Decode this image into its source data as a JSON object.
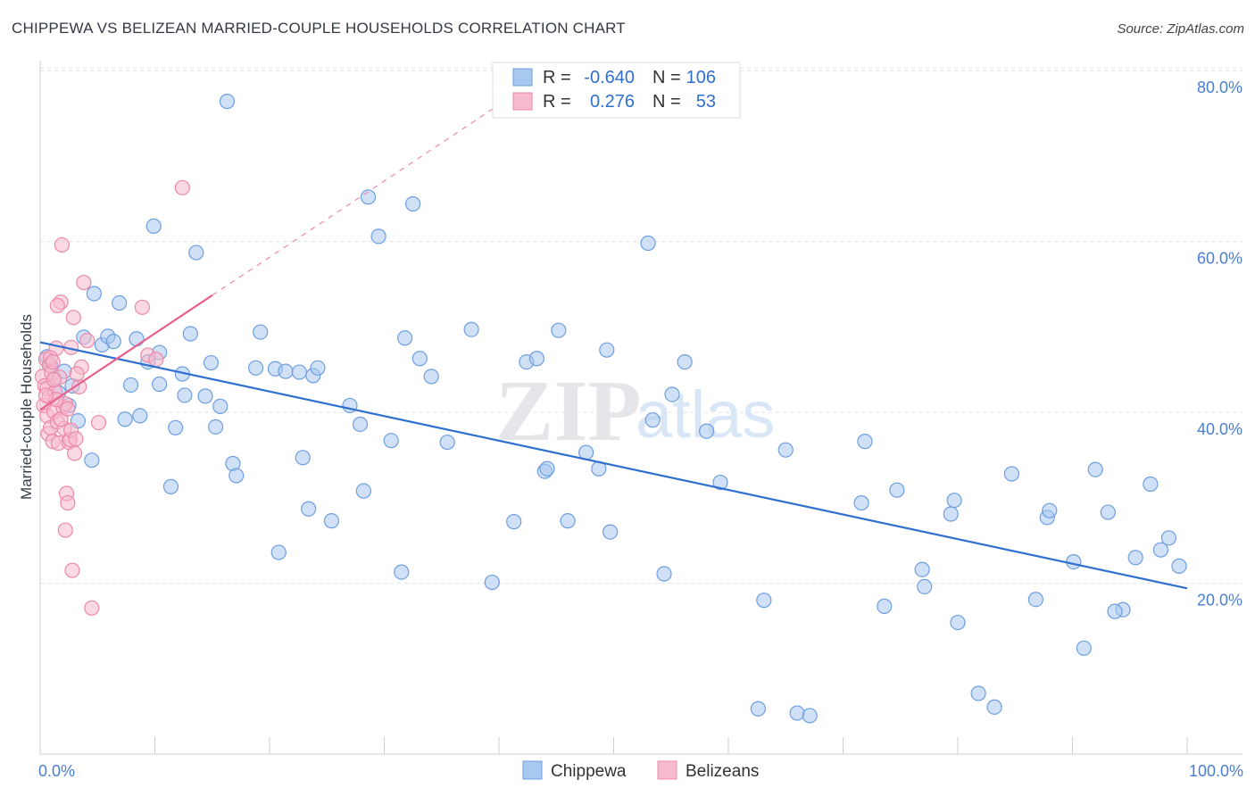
{
  "title": "CHIPPEWA VS BELIZEAN MARRIED-COUPLE HOUSEHOLDS CORRELATION CHART",
  "source": "Source: ZipAtlas.com",
  "watermark": {
    "zip": "ZIP",
    "atlas": "atlas"
  },
  "colors": {
    "blue_fill": "#a9c8f0",
    "blue_stroke": "#6d9fe0",
    "blue_line": "#2f6fd0",
    "pink_fill": "#f7b9cc",
    "pink_stroke": "#ec89a8",
    "pink_line": "#e8618e",
    "tick_text": "#4a7fd0",
    "grid": "#dde3ea",
    "axis": "#c9ced6"
  },
  "legend": {
    "rows": [
      {
        "r_label": "R =",
        "r_value": "-0.640",
        "n_label": "N =",
        "n_value": "106"
      },
      {
        "r_label": "R =",
        "r_value": "0.276",
        "n_label": "N =",
        "n_value": "53"
      }
    ]
  },
  "bottom_legend": [
    "Chippewa",
    "Belizeans"
  ],
  "chart_data": {
    "type": "scatter",
    "title": "CHIPPEWA VS BELIZEAN MARRIED-COUPLE HOUSEHOLDS CORRELATION CHART",
    "xlabel": "",
    "ylabel": "Married-couple Households",
    "xlim": [
      0,
      100
    ],
    "ylim": [
      0,
      82
    ],
    "x_tick_labels": [
      "0.0%",
      "100.0%"
    ],
    "y_ticks": [
      20,
      40,
      60,
      80
    ],
    "y_tick_labels": [
      "20.0%",
      "40.0%",
      "60.0%",
      "80.0%"
    ],
    "grid": true,
    "series": [
      {
        "name": "Chippewa",
        "r": -0.64,
        "n": 106,
        "trend": {
          "x0": 0,
          "y0": 48.2,
          "x1": 100,
          "y1": 19.4
        },
        "points": [
          [
            0.6,
            46.5
          ],
          [
            0.9,
            45.5
          ],
          [
            1.2,
            43.9
          ],
          [
            1.6,
            42.3
          ],
          [
            2.1,
            44.8
          ],
          [
            2.5,
            40.8
          ],
          [
            2.8,
            43.1
          ],
          [
            3.3,
            39
          ],
          [
            3.8,
            48.8
          ],
          [
            4.5,
            34.4
          ],
          [
            4.7,
            53.9
          ],
          [
            5.4,
            47.9
          ],
          [
            5.9,
            48.9
          ],
          [
            6.4,
            48.3
          ],
          [
            6.9,
            52.8
          ],
          [
            7.4,
            39.2
          ],
          [
            7.9,
            43.2
          ],
          [
            8.4,
            48.6
          ],
          [
            8.7,
            39.6
          ],
          [
            9.4,
            45.9
          ],
          [
            9.9,
            61.8
          ],
          [
            10.4,
            43.3
          ],
          [
            10.4,
            47
          ],
          [
            11.4,
            31.3
          ],
          [
            11.8,
            38.2
          ],
          [
            12.4,
            44.5
          ],
          [
            12.6,
            42
          ],
          [
            13.1,
            49.2
          ],
          [
            13.6,
            58.7
          ],
          [
            14.4,
            41.9
          ],
          [
            14.9,
            45.8
          ],
          [
            15.3,
            38.3
          ],
          [
            15.7,
            40.7
          ],
          [
            16.3,
            76.4
          ],
          [
            16.8,
            34
          ],
          [
            17.1,
            32.6
          ],
          [
            18.8,
            45.2
          ],
          [
            19.2,
            49.4
          ],
          [
            20.5,
            45.1
          ],
          [
            20.8,
            23.6
          ],
          [
            21.4,
            44.8
          ],
          [
            22.6,
            44.7
          ],
          [
            22.9,
            34.7
          ],
          [
            23.4,
            28.7
          ],
          [
            23.8,
            44.3
          ],
          [
            24.2,
            45.2
          ],
          [
            25.4,
            27.3
          ],
          [
            27,
            40.8
          ],
          [
            27.9,
            38.6
          ],
          [
            28.2,
            30.8
          ],
          [
            28.6,
            65.2
          ],
          [
            29.5,
            60.6
          ],
          [
            30.6,
            36.7
          ],
          [
            31.5,
            21.3
          ],
          [
            31.8,
            48.7
          ],
          [
            32.5,
            64.4
          ],
          [
            33.1,
            46.3
          ],
          [
            34.1,
            44.2
          ],
          [
            35.5,
            36.5
          ],
          [
            37.6,
            49.7
          ],
          [
            39.4,
            20.1
          ],
          [
            41.3,
            27.2
          ],
          [
            42.4,
            45.9
          ],
          [
            43.3,
            46.3
          ],
          [
            44,
            33.1
          ],
          [
            44.2,
            33.4
          ],
          [
            45.2,
            49.6
          ],
          [
            46,
            27.3
          ],
          [
            47.6,
            35.3
          ],
          [
            48.7,
            33.4
          ],
          [
            49.4,
            47.3
          ],
          [
            49.7,
            26
          ],
          [
            53,
            59.8
          ],
          [
            53.4,
            39.1
          ],
          [
            54.4,
            21.1
          ],
          [
            55.1,
            42.1
          ],
          [
            56.2,
            45.9
          ],
          [
            58.1,
            37.8
          ],
          [
            59.3,
            31.8
          ],
          [
            62.6,
            5.3
          ],
          [
            63.1,
            18
          ],
          [
            65,
            35.6
          ],
          [
            66,
            4.8
          ],
          [
            67.1,
            4.5
          ],
          [
            71.6,
            29.4
          ],
          [
            71.9,
            36.6
          ],
          [
            73.6,
            17.3
          ],
          [
            74.7,
            30.9
          ],
          [
            76.9,
            21.6
          ],
          [
            77.1,
            19.6
          ],
          [
            79.4,
            28.1
          ],
          [
            79.7,
            29.7
          ],
          [
            80,
            15.4
          ],
          [
            81.8,
            7.1
          ],
          [
            83.2,
            5.5
          ],
          [
            84.7,
            32.8
          ],
          [
            86.8,
            18.1
          ],
          [
            87.8,
            27.7
          ],
          [
            90.1,
            22.5
          ],
          [
            91,
            12.4
          ],
          [
            92,
            33.3
          ],
          [
            93.1,
            28.3
          ],
          [
            94.4,
            16.9
          ],
          [
            95.5,
            23
          ],
          [
            96.8,
            31.6
          ],
          [
            97.7,
            23.9
          ],
          [
            98.4,
            25.3
          ],
          [
            99.3,
            22
          ],
          [
            93.7,
            16.7
          ],
          [
            88,
            28.5
          ]
        ]
      },
      {
        "name": "Belizeans",
        "r": 0.276,
        "n": 53,
        "trend": {
          "x0": 0,
          "y0": 40.3,
          "x1": 15,
          "y1": 53.7,
          "dashed_to_x": 40,
          "dashed_to_y": 76
        },
        "points": [
          [
            0.2,
            44.2
          ],
          [
            0.3,
            40.8
          ],
          [
            0.4,
            43.1
          ],
          [
            0.5,
            46.2
          ],
          [
            0.6,
            42.8
          ],
          [
            0.6,
            39.6
          ],
          [
            0.7,
            37.5
          ],
          [
            0.8,
            45.5
          ],
          [
            0.8,
            41.8
          ],
          [
            0.9,
            38.2
          ],
          [
            1,
            44.6
          ],
          [
            1.1,
            36.6
          ],
          [
            1.2,
            40.1
          ],
          [
            1.3,
            42.4
          ],
          [
            1.4,
            47.5
          ],
          [
            1.5,
            38.9
          ],
          [
            1.6,
            36.4
          ],
          [
            1.7,
            44.1
          ],
          [
            1.8,
            52.9
          ],
          [
            1.9,
            59.6
          ],
          [
            2,
            40.6
          ],
          [
            2.1,
            38.1
          ],
          [
            2.2,
            41
          ],
          [
            2.3,
            30.5
          ],
          [
            2.4,
            29.4
          ],
          [
            2.5,
            36.5
          ],
          [
            2.6,
            36.8
          ],
          [
            2.7,
            37.9
          ],
          [
            2.8,
            21.5
          ],
          [
            2.9,
            51.1
          ],
          [
            3,
            35.2
          ],
          [
            3.1,
            36.9
          ],
          [
            3.4,
            43
          ],
          [
            3.6,
            45.3
          ],
          [
            3.8,
            55.2
          ],
          [
            4.1,
            48.4
          ],
          [
            4.5,
            17.1
          ],
          [
            5.1,
            38.8
          ],
          [
            8.9,
            52.3
          ],
          [
            9.4,
            46.7
          ],
          [
            10.1,
            46.2
          ],
          [
            12.4,
            66.3
          ],
          [
            2.2,
            26.2
          ],
          [
            1.5,
            52.5
          ],
          [
            0.9,
            46.4
          ],
          [
            1.2,
            43.8
          ],
          [
            1.4,
            41.5
          ],
          [
            2.7,
            47.6
          ],
          [
            0.5,
            42
          ],
          [
            1.8,
            39.2
          ],
          [
            2.4,
            40.4
          ],
          [
            3.2,
            44.5
          ],
          [
            1.1,
            45.9
          ]
        ]
      }
    ]
  }
}
